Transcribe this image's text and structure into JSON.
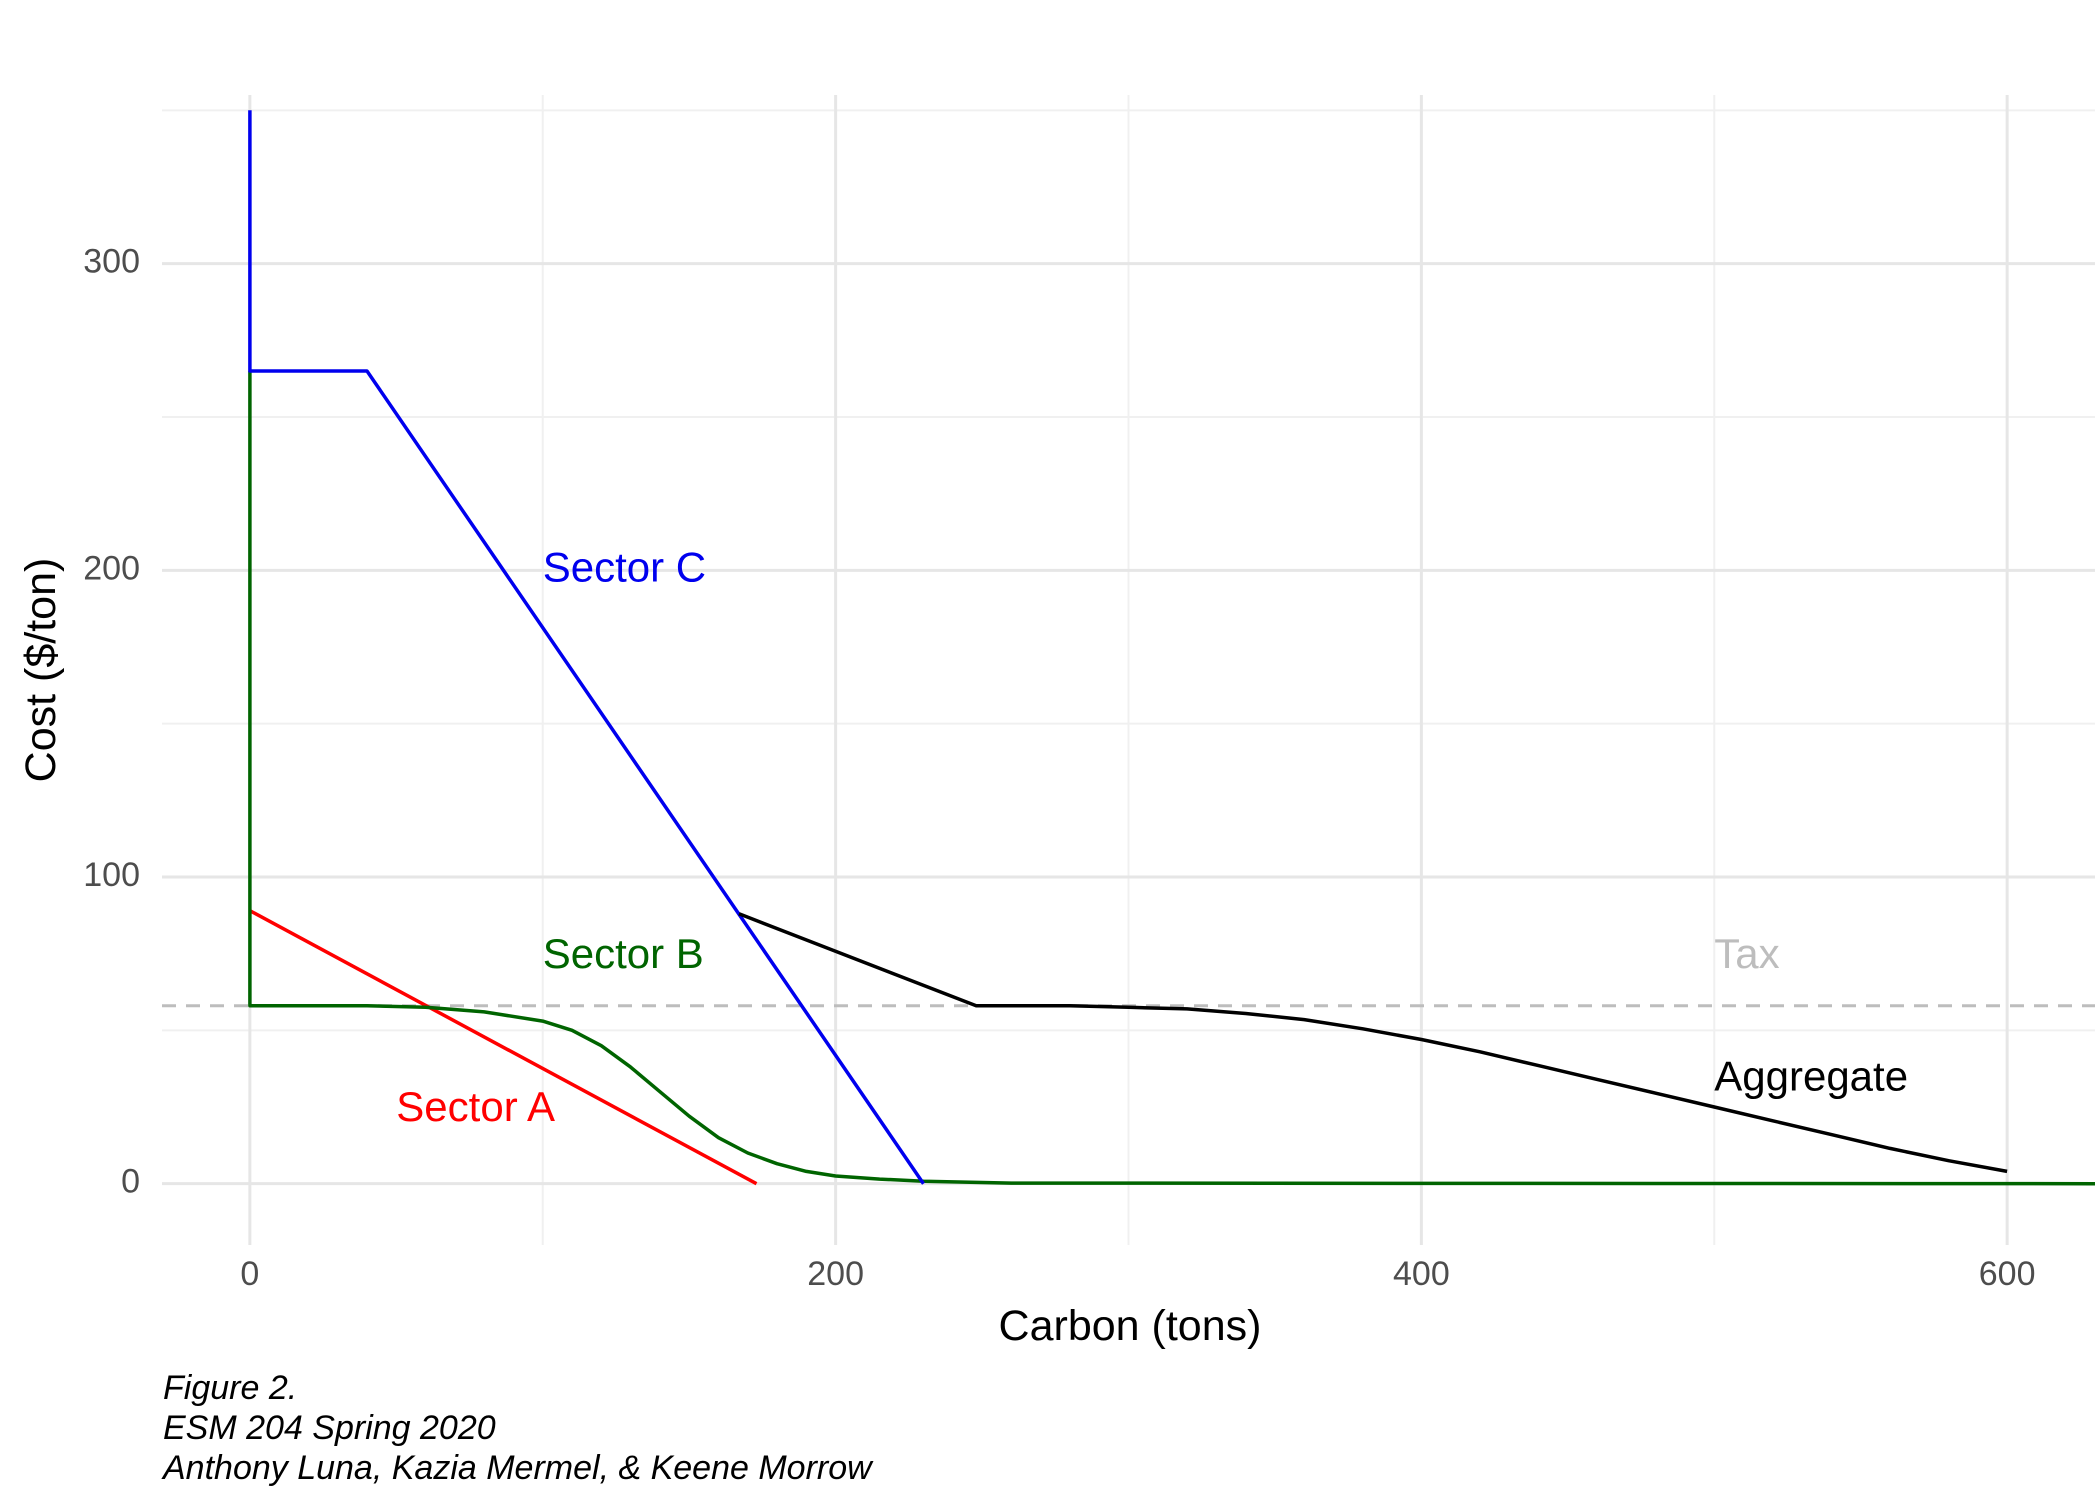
{
  "chart_data": {
    "type": "line",
    "xlabel": "Carbon (tons)",
    "ylabel": "Cost ($/ton)",
    "xlim": [
      -30,
      630
    ],
    "ylim": [
      -20,
      355
    ],
    "x_ticks": [
      0,
      200,
      400,
      600
    ],
    "y_ticks": [
      0,
      100,
      200,
      300
    ],
    "x_minor_ticks": [
      100,
      300,
      500
    ],
    "y_minor_ticks": [
      50,
      150,
      250,
      350
    ],
    "grid": true,
    "legend": "none",
    "tax": {
      "label": "Tax",
      "value": 58,
      "color": "#bdbdbd",
      "label_x": 500,
      "label_y": 74
    },
    "series": [
      {
        "name": "Sector A",
        "color": "#ff0000",
        "label_x": 50,
        "label_y": 24,
        "points": [
          [
            0,
            89
          ],
          [
            173,
            0
          ]
        ]
      },
      {
        "name": "Sector B",
        "color": "#006400",
        "label_x": 100,
        "label_y": 74,
        "points": [
          [
            0,
            265
          ],
          [
            0,
            58
          ],
          [
            40,
            58
          ],
          [
            60,
            57.5
          ],
          [
            80,
            56
          ],
          [
            100,
            53
          ],
          [
            110,
            50
          ],
          [
            120,
            45
          ],
          [
            130,
            38
          ],
          [
            140,
            30
          ],
          [
            150,
            22
          ],
          [
            160,
            15
          ],
          [
            170,
            10
          ],
          [
            180,
            6.5
          ],
          [
            190,
            4
          ],
          [
            200,
            2.5
          ],
          [
            215,
            1.5
          ],
          [
            230,
            0.8
          ],
          [
            260,
            0.2
          ],
          [
            630,
            0
          ]
        ]
      },
      {
        "name": "Sector C",
        "color": "#0000ee",
        "label_x": 100,
        "label_y": 200,
        "points": [
          [
            0,
            350
          ],
          [
            0,
            265
          ],
          [
            40,
            265
          ],
          [
            230,
            0
          ]
        ]
      },
      {
        "name": "Aggregate",
        "color": "#000000",
        "label_x": 500,
        "label_y": 34,
        "points": [
          [
            167,
            88
          ],
          [
            248,
            58
          ],
          [
            280,
            58
          ],
          [
            300,
            57.5
          ],
          [
            320,
            57
          ],
          [
            340,
            55.5
          ],
          [
            360,
            53.5
          ],
          [
            380,
            50.5
          ],
          [
            400,
            47
          ],
          [
            420,
            43
          ],
          [
            440,
            38.5
          ],
          [
            460,
            34
          ],
          [
            480,
            29.5
          ],
          [
            500,
            25
          ],
          [
            520,
            20.5
          ],
          [
            540,
            16
          ],
          [
            560,
            11.5
          ],
          [
            580,
            7.5
          ],
          [
            600,
            4
          ]
        ]
      }
    ]
  },
  "caption": {
    "line1": "Figure 2.",
    "line2": "ESM 204 Spring 2020",
    "line3": "Anthony Luna, Kazia Mermel, & Keene Morrow"
  }
}
